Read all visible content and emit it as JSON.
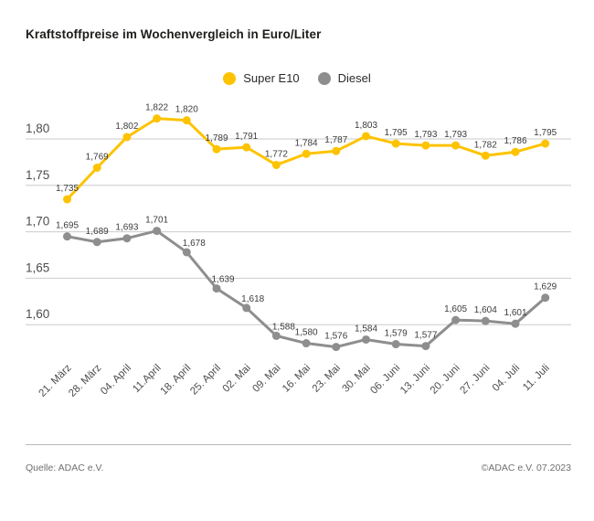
{
  "footer": {
    "source": "Quelle: ADAC e.V.",
    "copyright": "©ADAC e.V. 07.2023"
  },
  "colors": {
    "super_e10": "#fdc300",
    "diesel": "#8e8e8e",
    "gridline": "#cbcbcb",
    "axis_text": "#4d4d4d",
    "data_label_text": "#3c3c3c"
  },
  "chart_data": {
    "type": "line",
    "title": "Kraftstoffpreise im Wochenvergleich in Euro/Liter",
    "xlabel": "",
    "ylabel": "Euro/Liter",
    "ylim": [
      1.56,
      1.84
    ],
    "grid": true,
    "legend_position": "top-center",
    "decimal_separator": ",",
    "categories": [
      "21. März",
      "28. März",
      "04. April",
      "11.April",
      "18. April",
      "25. April",
      "02. Mai",
      "09. Mai",
      "16. Mai",
      "23. Mai",
      "30. Mai",
      "06. Juni",
      "13. Juni",
      "20. Juni",
      "27. Juni",
      "04. Juli",
      "11. Juli"
    ],
    "yticks": [
      {
        "v": 1.8,
        "label": "1,80"
      },
      {
        "v": 1.75,
        "label": "1,75"
      },
      {
        "v": 1.7,
        "label": "1,70"
      },
      {
        "v": 1.65,
        "label": "1,65"
      },
      {
        "v": 1.6,
        "label": "1,60"
      }
    ],
    "series": [
      {
        "name": "Super E10",
        "color": "#fdc300",
        "values": [
          1.735,
          1.769,
          1.802,
          1.822,
          1.82,
          1.789,
          1.791,
          1.772,
          1.784,
          1.787,
          1.803,
          1.795,
          1.793,
          1.793,
          1.782,
          1.786,
          1.795
        ]
      },
      {
        "name": "Diesel",
        "color": "#8e8e8e",
        "values": [
          1.695,
          1.689,
          1.693,
          1.701,
          1.678,
          1.639,
          1.618,
          1.588,
          1.58,
          1.576,
          1.584,
          1.579,
          1.577,
          1.605,
          1.604,
          1.601,
          1.629
        ]
      }
    ]
  }
}
